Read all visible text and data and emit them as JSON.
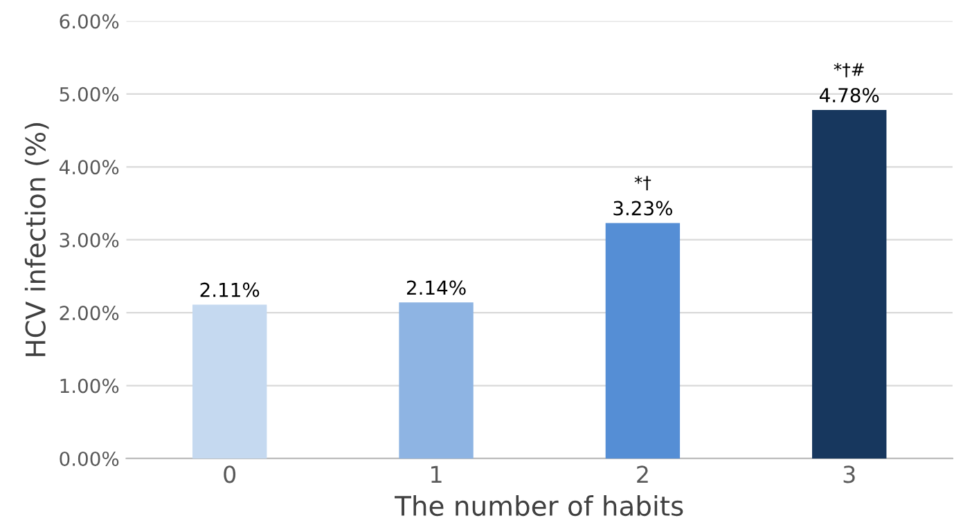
{
  "chart_data": {
    "type": "bar",
    "xlabel": "The number of habits",
    "ylabel": "HCV infection (%)",
    "categories": [
      "0",
      "1",
      "2",
      "3"
    ],
    "values": [
      2.11,
      2.14,
      3.23,
      4.78
    ],
    "colors": [
      "#c5d9f0",
      "#8eb4e3",
      "#558ed5",
      "#17375e"
    ],
    "value_labels": [
      "2.11%",
      "2.14%",
      "3.23%",
      "4.78%"
    ],
    "annotations": [
      {
        "text": "*†",
        "x": "2",
        "y": 3.23
      },
      {
        "text": "*†#",
        "x": "3",
        "y": 4.78
      }
    ],
    "ylim": [
      0,
      6
    ],
    "yticks": [
      {
        "value": 0,
        "label": "0.00%"
      },
      {
        "value": 1,
        "label": "1.00%"
      },
      {
        "value": 2,
        "label": "2.00%"
      },
      {
        "value": 3,
        "label": "3.00%"
      },
      {
        "value": 4,
        "label": "4.00%"
      },
      {
        "value": 5,
        "label": "5.00%"
      },
      {
        "value": 6,
        "label": "6.00%"
      }
    ],
    "grid": "y",
    "legend": false
  }
}
